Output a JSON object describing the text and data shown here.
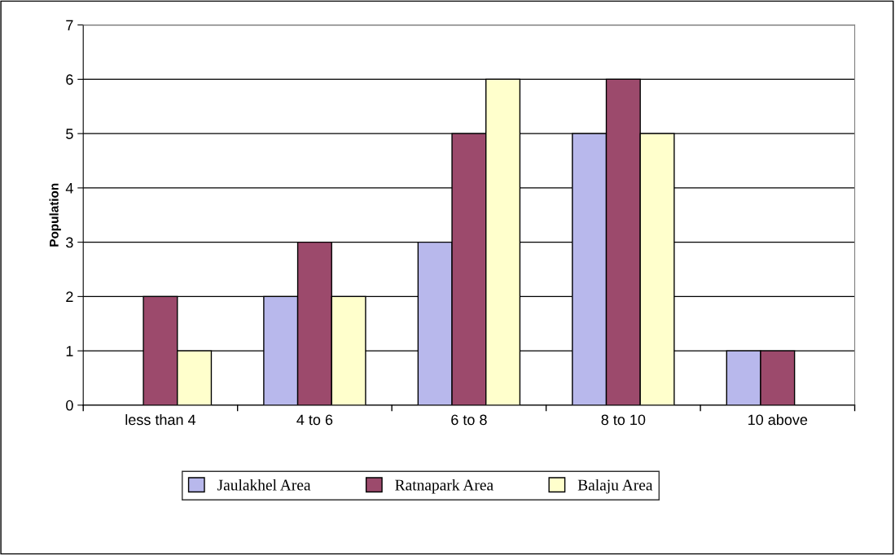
{
  "chart_data": {
    "type": "bar",
    "ylabel": "Population",
    "categories": [
      "less than 4",
      "4 to 6",
      "6 to 8",
      "8 to 10",
      "10 above"
    ],
    "series": [
      {
        "name": "Jaulakhel Area",
        "color": "#b8b8ec",
        "values": [
          null,
          2,
          3,
          5,
          1
        ]
      },
      {
        "name": "Ratnapark Area",
        "color": "#9c4a6c",
        "values": [
          2,
          3,
          5,
          6,
          1
        ]
      },
      {
        "name": "Balaju Area",
        "color": "#ffffcc",
        "values": [
          1,
          2,
          6,
          5,
          null
        ]
      }
    ],
    "ylim": [
      0,
      7
    ],
    "yticks": [
      0,
      1,
      2,
      3,
      4,
      5,
      6,
      7
    ],
    "grid": "y",
    "legend": "bottom"
  }
}
